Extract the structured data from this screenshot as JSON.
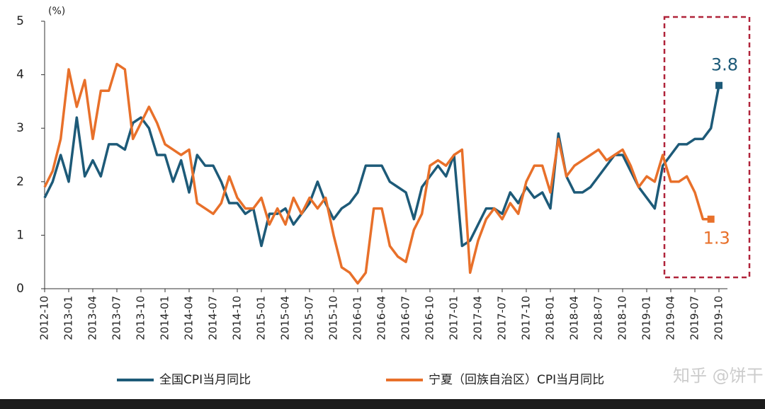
{
  "chart_data": {
    "type": "line",
    "y_unit": "(%)",
    "categories": [
      "2012-10",
      null,
      null,
      "2013-01",
      null,
      null,
      "2013-04",
      null,
      null,
      "2013-07",
      null,
      null,
      "2013-10",
      null,
      null,
      "2014-01",
      null,
      null,
      "2014-04",
      null,
      null,
      "2014-07",
      null,
      null,
      "2014-10",
      null,
      null,
      "2015-01",
      null,
      null,
      "2015-04",
      null,
      null,
      "2015-07",
      null,
      null,
      "2015-10",
      null,
      null,
      "2016-01",
      null,
      null,
      "2016-04",
      null,
      null,
      "2016-07",
      null,
      null,
      "2016-10",
      null,
      null,
      "2017-01",
      null,
      null,
      "2017-04",
      null,
      null,
      "2017-07",
      null,
      null,
      "2017-10",
      null,
      null,
      "2018-01",
      null,
      null,
      "2018-04",
      null,
      null,
      "2018-07",
      null,
      null,
      "2018-10",
      null,
      null,
      "2019-01",
      null,
      null,
      "2019-04",
      null,
      null,
      "2019-07",
      null,
      null,
      "2019-10"
    ],
    "series": [
      {
        "name": "全国CPI当月同比",
        "color": "#1d5a78",
        "end_label": "3.8",
        "values": [
          1.7,
          2.0,
          2.5,
          2.0,
          3.2,
          2.1,
          2.4,
          2.1,
          2.7,
          2.7,
          2.6,
          3.1,
          3.2,
          3.0,
          2.5,
          2.5,
          2.0,
          2.4,
          1.8,
          2.5,
          2.3,
          2.3,
          2.0,
          1.6,
          1.6,
          1.4,
          1.5,
          0.8,
          1.4,
          1.4,
          1.5,
          1.2,
          1.4,
          1.6,
          2.0,
          1.6,
          1.3,
          1.5,
          1.6,
          1.8,
          2.3,
          2.3,
          2.3,
          2.0,
          1.9,
          1.8,
          1.3,
          1.9,
          2.1,
          2.3,
          2.1,
          2.5,
          0.8,
          0.9,
          1.2,
          1.5,
          1.5,
          1.4,
          1.8,
          1.6,
          1.9,
          1.7,
          1.8,
          1.5,
          2.9,
          2.1,
          1.8,
          1.8,
          1.9,
          2.1,
          2.3,
          2.5,
          2.5,
          2.2,
          1.9,
          1.7,
          1.5,
          2.3,
          2.5,
          2.7,
          2.7,
          2.8,
          2.8,
          3.0,
          3.8
        ]
      },
      {
        "name": "宁夏（回族自治区）CPI当月同比",
        "color": "#e8702a",
        "end_label": "1.3",
        "values": [
          1.9,
          2.2,
          2.8,
          4.1,
          3.4,
          3.9,
          2.8,
          3.7,
          3.7,
          4.2,
          4.1,
          2.8,
          3.1,
          3.4,
          3.1,
          2.7,
          2.6,
          2.5,
          2.6,
          1.6,
          1.5,
          1.4,
          1.6,
          2.1,
          1.7,
          1.5,
          1.5,
          1.7,
          1.2,
          1.5,
          1.2,
          1.7,
          1.4,
          1.7,
          1.5,
          1.7,
          1.0,
          0.4,
          0.3,
          0.1,
          0.3,
          1.5,
          1.5,
          0.8,
          0.6,
          0.5,
          1.1,
          1.4,
          2.3,
          2.4,
          2.3,
          2.5,
          2.6,
          0.3,
          0.9,
          1.3,
          1.5,
          1.3,
          1.6,
          1.4,
          2.0,
          2.3,
          2.3,
          1.8,
          2.8,
          2.1,
          2.3,
          2.4,
          2.5,
          2.6,
          2.4,
          2.5,
          2.6,
          2.3,
          1.9,
          2.1,
          2.0,
          2.5,
          2.0,
          2.0,
          2.1,
          1.8,
          1.3,
          1.3,
          null
        ]
      }
    ],
    "ylim": [
      0,
      5
    ],
    "yticks": [
      0,
      1,
      2,
      3,
      4,
      5
    ],
    "grid": false,
    "watermark": "知乎 @饼干"
  }
}
